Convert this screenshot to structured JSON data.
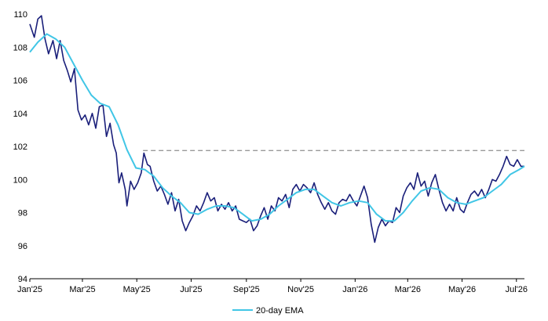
{
  "chart_data": {
    "type": "line",
    "title": "",
    "xlabel": "",
    "ylabel": "",
    "ylim": [
      94,
      110
    ],
    "xlim": [
      "2025-01-01",
      "2026-07-10"
    ],
    "yticks": [
      94,
      96,
      98,
      100,
      102,
      104,
      106,
      108,
      110
    ],
    "xticks": [
      {
        "date": "2025-01-01",
        "label": "Jan'25"
      },
      {
        "date": "2025-03-01",
        "label": "Mar'25"
      },
      {
        "date": "2025-05-01",
        "label": "May'25"
      },
      {
        "date": "2025-07-01",
        "label": "Jul'25"
      },
      {
        "date": "2025-09-01",
        "label": "Sep'25"
      },
      {
        "date": "2025-11-01",
        "label": "Nov'25"
      },
      {
        "date": "2026-01-01",
        "label": "Jan'26"
      },
      {
        "date": "2026-03-01",
        "label": "Mar'26"
      },
      {
        "date": "2026-05-01",
        "label": "May'26"
      },
      {
        "date": "2026-07-01",
        "label": "Jul'26"
      }
    ],
    "grid": false,
    "legend_position": "bottom-center",
    "reference_line": {
      "y": 101.75,
      "x_start": "2025-05-08",
      "x_end": "2026-07-10",
      "style": "dashed",
      "color": "#999999"
    },
    "series": [
      {
        "color": "#1a1f7a",
        "points": [
          [
            "2025-01-01",
            109.4
          ],
          [
            "2025-01-06",
            108.6
          ],
          [
            "2025-01-10",
            109.7
          ],
          [
            "2025-01-14",
            109.9
          ],
          [
            "2025-01-18",
            108.5
          ],
          [
            "2025-01-22",
            107.6
          ],
          [
            "2025-01-27",
            108.4
          ],
          [
            "2025-01-31",
            107.3
          ],
          [
            "2025-02-04",
            108.4
          ],
          [
            "2025-02-08",
            107.2
          ],
          [
            "2025-02-12",
            106.6
          ],
          [
            "2025-02-16",
            105.9
          ],
          [
            "2025-02-20",
            106.7
          ],
          [
            "2025-02-24",
            104.2
          ],
          [
            "2025-02-28",
            103.6
          ],
          [
            "2025-03-04",
            103.9
          ],
          [
            "2025-03-08",
            103.3
          ],
          [
            "2025-03-12",
            104.0
          ],
          [
            "2025-03-16",
            103.1
          ],
          [
            "2025-03-20",
            104.4
          ],
          [
            "2025-03-24",
            104.5
          ],
          [
            "2025-03-28",
            102.6
          ],
          [
            "2025-04-01",
            103.4
          ],
          [
            "2025-04-05",
            102.1
          ],
          [
            "2025-04-08",
            101.6
          ],
          [
            "2025-04-11",
            99.8
          ],
          [
            "2025-04-14",
            100.4
          ],
          [
            "2025-04-18",
            99.4
          ],
          [
            "2025-04-20",
            98.4
          ],
          [
            "2025-04-24",
            99.9
          ],
          [
            "2025-04-28",
            99.4
          ],
          [
            "2025-05-02",
            99.8
          ],
          [
            "2025-05-06",
            100.4
          ],
          [
            "2025-05-09",
            101.6
          ],
          [
            "2025-05-13",
            100.9
          ],
          [
            "2025-05-16",
            100.8
          ],
          [
            "2025-05-20",
            99.9
          ],
          [
            "2025-05-24",
            99.3
          ],
          [
            "2025-05-28",
            99.6
          ],
          [
            "2025-06-01",
            99.1
          ],
          [
            "2025-06-05",
            98.5
          ],
          [
            "2025-06-09",
            99.2
          ],
          [
            "2025-06-13",
            98.1
          ],
          [
            "2025-06-17",
            98.8
          ],
          [
            "2025-06-21",
            97.5
          ],
          [
            "2025-06-25",
            96.9
          ],
          [
            "2025-06-29",
            97.4
          ],
          [
            "2025-07-03",
            97.8
          ],
          [
            "2025-07-07",
            98.4
          ],
          [
            "2025-07-11",
            98.1
          ],
          [
            "2025-07-15",
            98.6
          ],
          [
            "2025-07-19",
            99.2
          ],
          [
            "2025-07-23",
            98.7
          ],
          [
            "2025-07-27",
            98.9
          ],
          [
            "2025-07-31",
            98.1
          ],
          [
            "2025-08-04",
            98.5
          ],
          [
            "2025-08-08",
            98.2
          ],
          [
            "2025-08-12",
            98.6
          ],
          [
            "2025-08-16",
            98.1
          ],
          [
            "2025-08-20",
            98.4
          ],
          [
            "2025-08-24",
            97.6
          ],
          [
            "2025-08-28",
            97.5
          ],
          [
            "2025-09-01",
            97.4
          ],
          [
            "2025-09-05",
            97.6
          ],
          [
            "2025-09-09",
            96.9
          ],
          [
            "2025-09-13",
            97.2
          ],
          [
            "2025-09-17",
            97.8
          ],
          [
            "2025-09-21",
            98.3
          ],
          [
            "2025-09-25",
            97.6
          ],
          [
            "2025-09-29",
            98.4
          ],
          [
            "2025-10-03",
            98.1
          ],
          [
            "2025-10-07",
            98.9
          ],
          [
            "2025-10-11",
            98.7
          ],
          [
            "2025-10-15",
            99.1
          ],
          [
            "2025-10-19",
            98.3
          ],
          [
            "2025-10-23",
            99.4
          ],
          [
            "2025-10-27",
            99.7
          ],
          [
            "2025-10-31",
            99.3
          ],
          [
            "2025-11-04",
            99.7
          ],
          [
            "2025-11-08",
            99.5
          ],
          [
            "2025-11-12",
            99.2
          ],
          [
            "2025-11-16",
            99.8
          ],
          [
            "2025-11-20",
            99.1
          ],
          [
            "2025-11-24",
            98.6
          ],
          [
            "2025-11-28",
            98.2
          ],
          [
            "2025-12-02",
            98.6
          ],
          [
            "2025-12-06",
            98.1
          ],
          [
            "2025-12-10",
            97.9
          ],
          [
            "2025-12-14",
            98.6
          ],
          [
            "2025-12-18",
            98.8
          ],
          [
            "2025-12-22",
            98.7
          ],
          [
            "2025-12-26",
            99.1
          ],
          [
            "2025-12-30",
            98.7
          ],
          [
            "2026-01-03",
            98.4
          ],
          [
            "2026-01-07",
            99.0
          ],
          [
            "2026-01-11",
            99.6
          ],
          [
            "2026-01-15",
            98.9
          ],
          [
            "2026-01-19",
            97.3
          ],
          [
            "2026-01-23",
            96.2
          ],
          [
            "2026-01-27",
            97.1
          ],
          [
            "2026-01-31",
            97.6
          ],
          [
            "2026-02-04",
            97.2
          ],
          [
            "2026-02-08",
            97.5
          ],
          [
            "2026-02-12",
            97.4
          ],
          [
            "2026-02-16",
            98.3
          ],
          [
            "2026-02-20",
            98.0
          ],
          [
            "2026-02-24",
            99.0
          ],
          [
            "2026-02-28",
            99.5
          ],
          [
            "2026-03-04",
            99.8
          ],
          [
            "2026-03-08",
            99.4
          ],
          [
            "2026-03-12",
            100.4
          ],
          [
            "2026-03-16",
            99.6
          ],
          [
            "2026-03-20",
            99.9
          ],
          [
            "2026-03-24",
            99.0
          ],
          [
            "2026-03-28",
            99.8
          ],
          [
            "2026-04-01",
            100.3
          ],
          [
            "2026-04-05",
            99.4
          ],
          [
            "2026-04-09",
            98.6
          ],
          [
            "2026-04-13",
            98.1
          ],
          [
            "2026-04-17",
            98.5
          ],
          [
            "2026-04-21",
            98.1
          ],
          [
            "2026-04-25",
            98.9
          ],
          [
            "2026-04-29",
            98.2
          ],
          [
            "2026-05-03",
            98.0
          ],
          [
            "2026-05-07",
            98.6
          ],
          [
            "2026-05-11",
            99.1
          ],
          [
            "2026-05-15",
            99.3
          ],
          [
            "2026-05-19",
            99.0
          ],
          [
            "2026-05-23",
            99.4
          ],
          [
            "2026-05-27",
            98.9
          ],
          [
            "2026-05-31",
            99.4
          ],
          [
            "2026-06-04",
            100.0
          ],
          [
            "2026-06-08",
            99.9
          ],
          [
            "2026-06-12",
            100.3
          ],
          [
            "2026-06-16",
            100.8
          ],
          [
            "2026-06-20",
            101.4
          ],
          [
            "2026-06-24",
            100.9
          ],
          [
            "2026-06-28",
            100.8
          ],
          [
            "2026-07-02",
            101.2
          ],
          [
            "2026-07-06",
            100.8
          ],
          [
            "2026-07-10",
            100.8
          ]
        ]
      },
      {
        "name": "20-day EMA",
        "color": "#41c6e6",
        "points": [
          [
            "2025-01-01",
            107.7
          ],
          [
            "2025-01-10",
            108.3
          ],
          [
            "2025-01-20",
            108.8
          ],
          [
            "2025-01-30",
            108.5
          ],
          [
            "2025-02-09",
            108.0
          ],
          [
            "2025-02-19",
            107.0
          ],
          [
            "2025-03-01",
            106.0
          ],
          [
            "2025-03-11",
            105.1
          ],
          [
            "2025-03-21",
            104.6
          ],
          [
            "2025-03-31",
            104.4
          ],
          [
            "2025-04-10",
            103.3
          ],
          [
            "2025-04-20",
            101.8
          ],
          [
            "2025-04-30",
            100.7
          ],
          [
            "2025-05-10",
            100.6
          ],
          [
            "2025-05-20",
            100.2
          ],
          [
            "2025-05-30",
            99.5
          ],
          [
            "2025-06-09",
            99.0
          ],
          [
            "2025-06-19",
            98.6
          ],
          [
            "2025-06-29",
            98.0
          ],
          [
            "2025-07-09",
            97.9
          ],
          [
            "2025-07-19",
            98.2
          ],
          [
            "2025-07-29",
            98.4
          ],
          [
            "2025-08-08",
            98.4
          ],
          [
            "2025-08-18",
            98.3
          ],
          [
            "2025-08-28",
            97.9
          ],
          [
            "2025-09-07",
            97.5
          ],
          [
            "2025-09-17",
            97.6
          ],
          [
            "2025-09-27",
            97.9
          ],
          [
            "2025-10-07",
            98.4
          ],
          [
            "2025-10-17",
            98.8
          ],
          [
            "2025-10-27",
            99.2
          ],
          [
            "2025-11-06",
            99.4
          ],
          [
            "2025-11-16",
            99.4
          ],
          [
            "2025-11-26",
            99.0
          ],
          [
            "2025-12-06",
            98.6
          ],
          [
            "2025-12-16",
            98.4
          ],
          [
            "2025-12-26",
            98.6
          ],
          [
            "2026-01-05",
            98.7
          ],
          [
            "2026-01-15",
            98.6
          ],
          [
            "2026-01-25",
            97.9
          ],
          [
            "2026-02-04",
            97.5
          ],
          [
            "2026-02-14",
            97.5
          ],
          [
            "2026-02-24",
            98.0
          ],
          [
            "2026-03-06",
            98.7
          ],
          [
            "2026-03-16",
            99.3
          ],
          [
            "2026-03-26",
            99.5
          ],
          [
            "2026-04-05",
            99.4
          ],
          [
            "2026-04-15",
            98.9
          ],
          [
            "2026-04-25",
            98.6
          ],
          [
            "2026-05-05",
            98.5
          ],
          [
            "2026-05-15",
            98.7
          ],
          [
            "2026-05-25",
            98.9
          ],
          [
            "2026-06-04",
            99.3
          ],
          [
            "2026-06-14",
            99.7
          ],
          [
            "2026-06-24",
            100.3
          ],
          [
            "2026-07-04",
            100.6
          ],
          [
            "2026-07-10",
            100.8
          ]
        ]
      }
    ]
  }
}
